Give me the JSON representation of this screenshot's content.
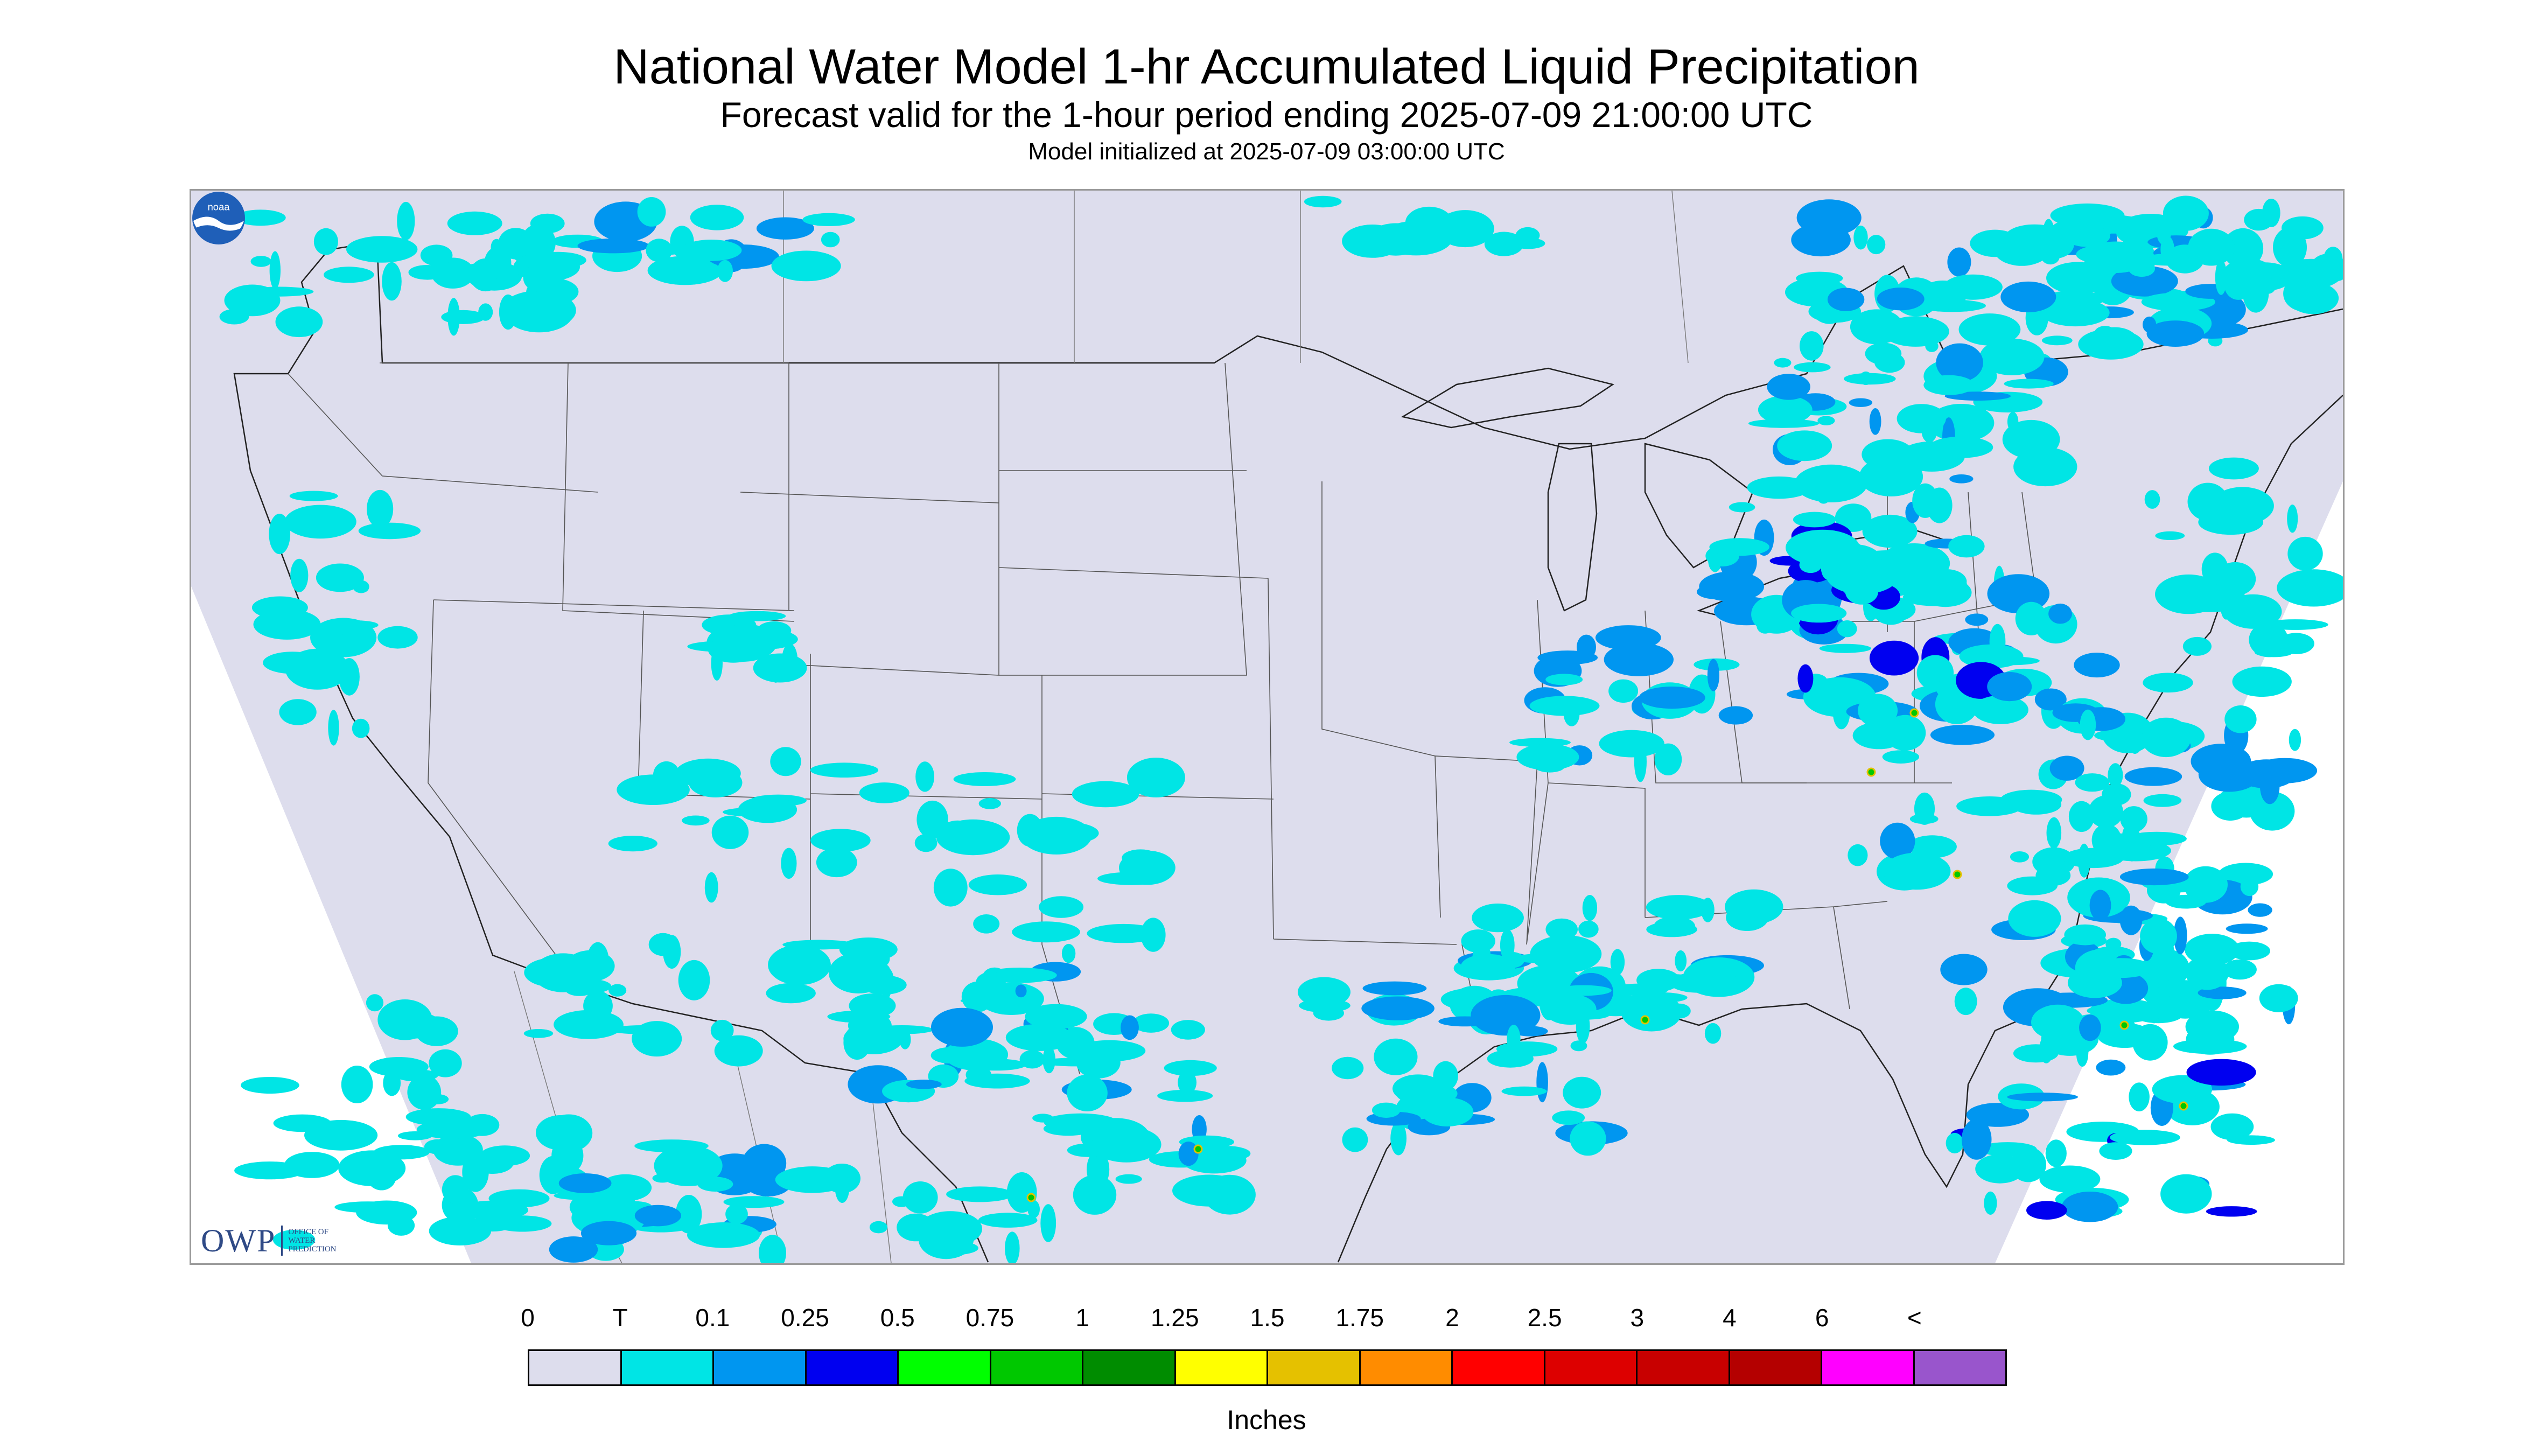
{
  "header": {
    "title": "National Water Model 1-hr Accumulated Liquid Precipitation",
    "subtitle": "Forecast valid for the 1-hour period ending 2025-07-09 21:00:00 UTC",
    "init": "Model initialized at 2025-07-09 03:00:00 UTC"
  },
  "map": {
    "background_color": "#dddded",
    "outside_color": "#ffffff",
    "border_color": "#222222",
    "logo_owp": {
      "text": "OWP",
      "sub_lines": [
        "OFFICE OF",
        "WATER",
        "PREDICTION"
      ]
    },
    "logo_noaa": {
      "text": "noaa",
      "icon": "noaa-logo-icon"
    },
    "precip_colors": {
      "trace": "#00e5e5",
      "light": "#0096f0",
      "moderate": "#0000f0",
      "heavy": "#00c800",
      "very_heavy": "#e5c100"
    }
  },
  "legend": {
    "labels": [
      "0",
      "T",
      "0.1",
      "0.25",
      "0.5",
      "0.75",
      "1",
      "1.25",
      "1.5",
      "1.75",
      "2",
      "2.5",
      "3",
      "4",
      "6",
      "<"
    ],
    "colors": [
      "#dddded",
      "#00e5e5",
      "#0096f0",
      "#0000f0",
      "#00ff00",
      "#00c800",
      "#008c00",
      "#ffff00",
      "#e5c100",
      "#ff8c00",
      "#ff0000",
      "#dd0000",
      "#c80000",
      "#b40000",
      "#ff00ff",
      "#9955cc"
    ],
    "units": "Inches"
  }
}
